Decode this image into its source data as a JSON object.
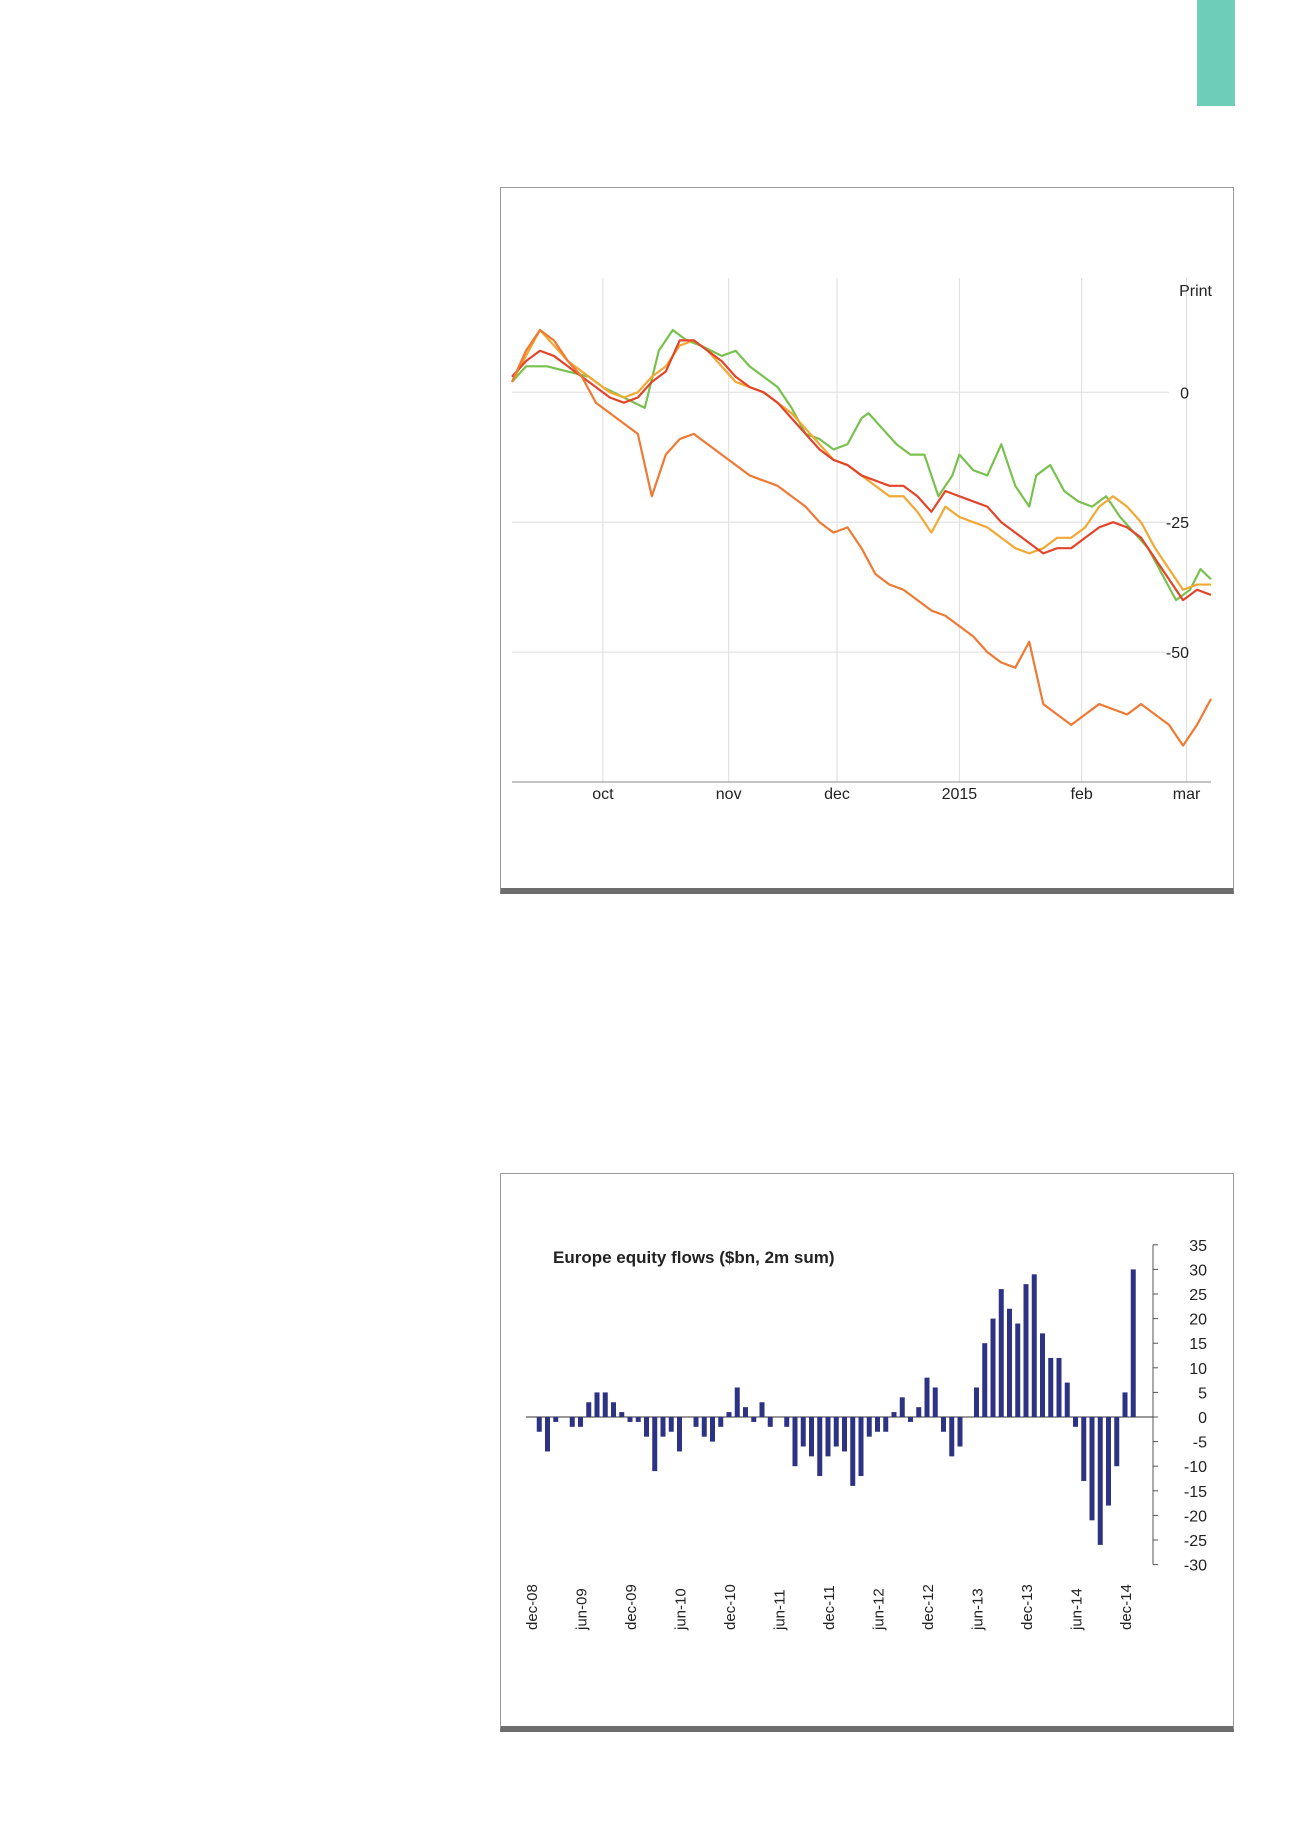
{
  "page": {
    "accent_color": "#6ecdb9"
  },
  "charts": [
    {
      "type": "line",
      "print_label": "Print",
      "colors": {
        "green": "#79c14e",
        "gold": "#f2a833",
        "red": "#e2452a",
        "orange": "#ee7a34",
        "grid": "#dddddd",
        "axis": "#888888"
      },
      "x_labels": [
        {
          "label": "oct",
          "pos": 0.13
        },
        {
          "label": "nov",
          "pos": 0.31
        },
        {
          "label": "dec",
          "pos": 0.465
        },
        {
          "label": "2015",
          "pos": 0.64
        },
        {
          "label": "feb",
          "pos": 0.815
        },
        {
          "label": "mar",
          "pos": 0.965
        }
      ],
      "y_ticks": [
        0,
        -25,
        -50
      ],
      "y_tick_labels": [
        "0",
        "-25",
        "-50"
      ],
      "ylim": [
        -75,
        22
      ],
      "xlim": [
        0,
        1
      ],
      "series": [
        {
          "color": "green",
          "x": [
            0,
            0.02,
            0.05,
            0.08,
            0.11,
            0.13,
            0.16,
            0.19,
            0.21,
            0.23,
            0.25,
            0.27,
            0.3,
            0.32,
            0.34,
            0.36,
            0.38,
            0.4,
            0.42,
            0.44,
            0.46,
            0.48,
            0.5,
            0.51,
            0.53,
            0.55,
            0.57,
            0.59,
            0.61,
            0.63,
            0.64,
            0.66,
            0.68,
            0.7,
            0.72,
            0.74,
            0.75,
            0.77,
            0.79,
            0.81,
            0.83,
            0.85,
            0.87,
            0.89,
            0.91,
            0.93,
            0.95,
            0.97,
            0.985,
            1
          ],
          "y": [
            2,
            5,
            5,
            4,
            3,
            1,
            -1,
            -3,
            8,
            12,
            10,
            9,
            7,
            8,
            5,
            3,
            1,
            -3,
            -8,
            -9,
            -11,
            -10,
            -5,
            -4,
            -7,
            -10,
            -12,
            -12,
            -20,
            -16,
            -12,
            -15,
            -16,
            -10,
            -18,
            -22,
            -16,
            -14,
            -19,
            -21,
            -22,
            -20,
            -24,
            -27,
            -30,
            -35,
            -40,
            -38,
            -34,
            -36
          ]
        },
        {
          "color": "gold",
          "x": [
            0,
            0.02,
            0.04,
            0.06,
            0.08,
            0.1,
            0.12,
            0.14,
            0.16,
            0.18,
            0.2,
            0.22,
            0.24,
            0.26,
            0.28,
            0.3,
            0.32,
            0.34,
            0.36,
            0.38,
            0.4,
            0.42,
            0.44,
            0.46,
            0.48,
            0.5,
            0.52,
            0.54,
            0.56,
            0.58,
            0.6,
            0.62,
            0.64,
            0.66,
            0.68,
            0.7,
            0.72,
            0.74,
            0.76,
            0.78,
            0.8,
            0.82,
            0.84,
            0.86,
            0.88,
            0.9,
            0.92,
            0.94,
            0.96,
            0.98,
            1
          ],
          "y": [
            2,
            7,
            12,
            9,
            6,
            4,
            2,
            0,
            -1,
            0,
            3,
            5,
            9,
            10,
            8,
            5,
            2,
            1,
            0,
            -2,
            -4,
            -7,
            -10,
            -13,
            -14,
            -16,
            -18,
            -20,
            -20,
            -23,
            -27,
            -22,
            -24,
            -25,
            -26,
            -28,
            -30,
            -31,
            -30,
            -28,
            -28,
            -26,
            -22,
            -20,
            -22,
            -25,
            -30,
            -34,
            -38,
            -37,
            -37
          ]
        },
        {
          "color": "red",
          "x": [
            0,
            0.02,
            0.04,
            0.06,
            0.08,
            0.1,
            0.12,
            0.14,
            0.16,
            0.18,
            0.2,
            0.22,
            0.24,
            0.26,
            0.28,
            0.3,
            0.32,
            0.34,
            0.36,
            0.38,
            0.4,
            0.42,
            0.44,
            0.46,
            0.48,
            0.5,
            0.52,
            0.54,
            0.56,
            0.58,
            0.6,
            0.62,
            0.64,
            0.66,
            0.68,
            0.7,
            0.72,
            0.74,
            0.76,
            0.78,
            0.8,
            0.82,
            0.84,
            0.86,
            0.88,
            0.9,
            0.92,
            0.94,
            0.96,
            0.98,
            1
          ],
          "y": [
            3,
            6,
            8,
            7,
            5,
            3,
            1,
            -1,
            -2,
            -1,
            2,
            4,
            10,
            10,
            8,
            6,
            3,
            1,
            0,
            -2,
            -5,
            -8,
            -11,
            -13,
            -14,
            -16,
            -17,
            -18,
            -18,
            -20,
            -23,
            -19,
            -20,
            -21,
            -22,
            -25,
            -27,
            -29,
            -31,
            -30,
            -30,
            -28,
            -26,
            -25,
            -26,
            -28,
            -32,
            -36,
            -40,
            -38,
            -39
          ]
        },
        {
          "color": "orange",
          "x": [
            0,
            0.02,
            0.04,
            0.06,
            0.08,
            0.1,
            0.12,
            0.14,
            0.16,
            0.18,
            0.2,
            0.22,
            0.24,
            0.26,
            0.28,
            0.3,
            0.32,
            0.34,
            0.36,
            0.38,
            0.4,
            0.42,
            0.44,
            0.46,
            0.48,
            0.5,
            0.52,
            0.54,
            0.56,
            0.58,
            0.6,
            0.62,
            0.64,
            0.66,
            0.68,
            0.7,
            0.72,
            0.74,
            0.76,
            0.78,
            0.8,
            0.82,
            0.84,
            0.86,
            0.88,
            0.9,
            0.92,
            0.94,
            0.96,
            0.98,
            1
          ],
          "y": [
            2,
            8,
            12,
            10,
            6,
            3,
            -2,
            -4,
            -6,
            -8,
            -20,
            -12,
            -9,
            -8,
            -10,
            -12,
            -14,
            -16,
            -17,
            -18,
            -20,
            -22,
            -25,
            -27,
            -26,
            -30,
            -35,
            -37,
            -38,
            -40,
            -42,
            -43,
            -45,
            -47,
            -50,
            -52,
            -53,
            -48,
            -60,
            -62,
            -64,
            -62,
            -60,
            -61,
            -62,
            -60,
            -62,
            -64,
            -68,
            -64,
            -59
          ]
        }
      ]
    },
    {
      "type": "bar",
      "title": "Europe equity flows ($bn, 2m sum)",
      "color": "#2e3285",
      "ylim": [
        -30,
        35
      ],
      "y_ticks": [
        35,
        30,
        25,
        20,
        15,
        10,
        5,
        0,
        -5,
        -10,
        -15,
        -20,
        -25,
        -30
      ],
      "y_tick_labels": [
        "35",
        "30",
        "25",
        "20",
        "15",
        "10",
        "5",
        "0",
        "-5",
        "-10",
        "-15",
        "-20",
        "-25",
        "-30"
      ],
      "x_tick_labels": [
        {
          "label": "dec-08",
          "index": 0
        },
        {
          "label": "jun-09",
          "index": 6
        },
        {
          "label": "dec-09",
          "index": 12
        },
        {
          "label": "jun-10",
          "index": 18
        },
        {
          "label": "dec-10",
          "index": 24
        },
        {
          "label": "jun-11",
          "index": 30
        },
        {
          "label": "dec-11",
          "index": 36
        },
        {
          "label": "jun-12",
          "index": 42
        },
        {
          "label": "dec-12",
          "index": 48
        },
        {
          "label": "jun-13",
          "index": 54
        },
        {
          "label": "dec-13",
          "index": 60
        },
        {
          "label": "jun-14",
          "index": 66
        },
        {
          "label": "dec-14",
          "index": 72
        }
      ],
      "values": [
        0,
        -3,
        -7,
        -1,
        0,
        -2,
        -2,
        3,
        5,
        5,
        3,
        1,
        -1,
        -1,
        -4,
        -11,
        -4,
        -3,
        -7,
        0,
        -2,
        -4,
        -5,
        -2,
        1,
        6,
        2,
        -1,
        3,
        -2,
        0,
        -2,
        -10,
        -6,
        -8,
        -12,
        -8,
        -6,
        -7,
        -14,
        -12,
        -4,
        -3,
        -3,
        1,
        4,
        -1,
        2,
        8,
        6,
        -3,
        -8,
        -6,
        0,
        6,
        15,
        20,
        26,
        22,
        19,
        27,
        29,
        17,
        12,
        12,
        7,
        -2,
        -13,
        -21,
        -26,
        -18,
        -10,
        5,
        30
      ]
    }
  ]
}
